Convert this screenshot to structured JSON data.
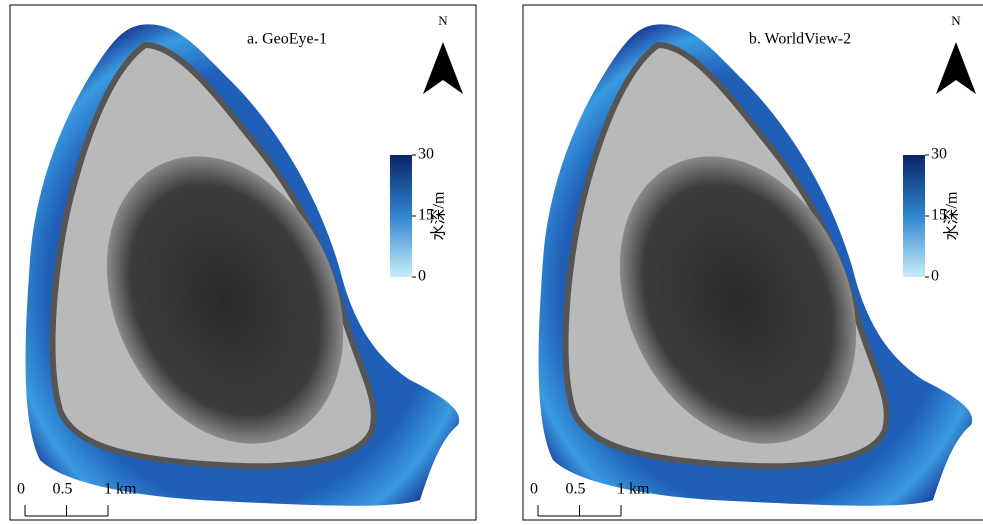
{
  "panels": [
    {
      "title": "a. GeoEye-1",
      "north": "N",
      "colorbar": {
        "label": "水深/m",
        "range": [
          0,
          30
        ],
        "ticks": [
          0,
          15,
          30
        ]
      },
      "scalebar": {
        "range": [
          0,
          1
        ],
        "ticks": [
          0,
          0.5,
          {
            "value": 1,
            "label": "1 km"
          }
        ]
      }
    },
    {
      "title": "b. WorldView-2",
      "north": "N",
      "colorbar": {
        "label": "水深/m",
        "range": [
          0,
          30
        ],
        "ticks": [
          0,
          15,
          30
        ]
      },
      "scalebar": {
        "range": [
          0,
          1
        ],
        "ticks": [
          0,
          0.5,
          {
            "value": 1,
            "label": "1 km"
          }
        ]
      }
    }
  ]
}
